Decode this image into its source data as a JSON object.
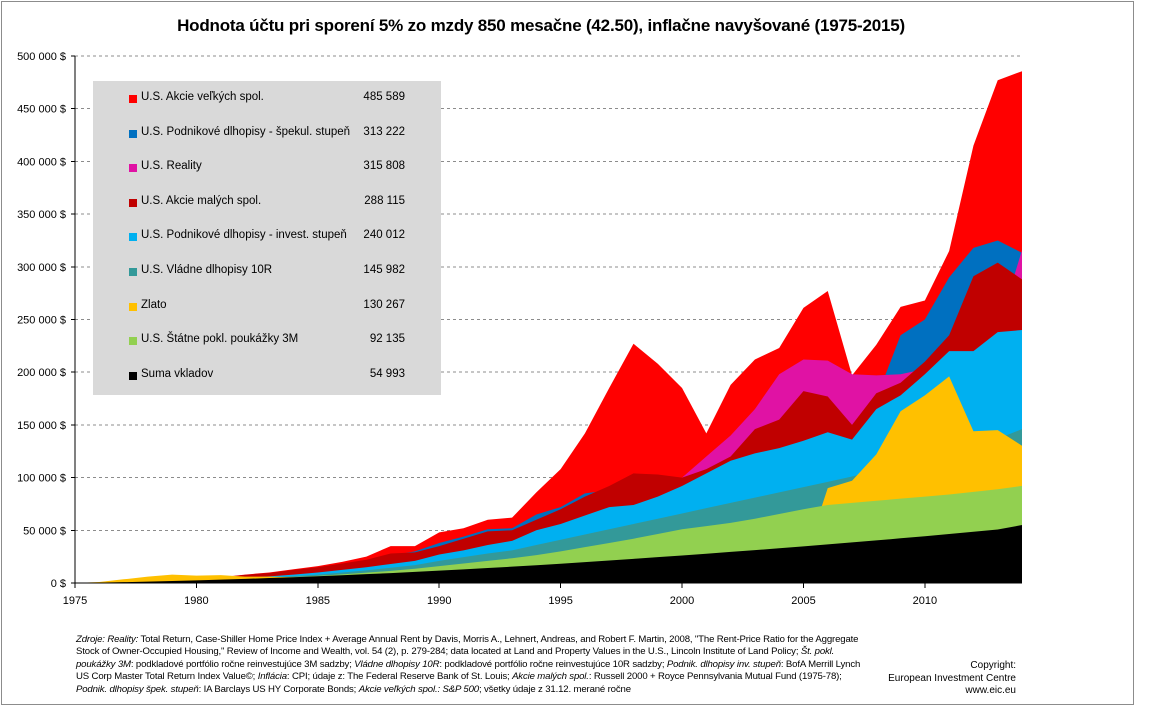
{
  "chart_data": {
    "type": "area",
    "title": "Hodnota účtu pri sporení 5% zo mzdy 850 mesačne (42.50), inflačne navyšované  (1975-2015)",
    "xlim": [
      1975,
      2014
    ],
    "ylim": [
      0,
      500000
    ],
    "x_ticks": [
      "1975",
      "1980",
      "1985",
      "1990",
      "1995",
      "2000",
      "2005",
      "2010"
    ],
    "x_tick_values": [
      1975,
      1980,
      1985,
      1990,
      1995,
      2000,
      2005,
      2010
    ],
    "y_ticks": [
      "0 $",
      "50 000 $",
      "100 000 $",
      "150 000 $",
      "200 000 $",
      "250 000 $",
      "300 000 $",
      "350 000 $",
      "400 000 $",
      "450 000 $",
      "500 000 $"
    ],
    "y_tick_values": [
      0,
      50000,
      100000,
      150000,
      200000,
      250000,
      300000,
      350000,
      400000,
      450000,
      500000
    ],
    "grid": "horizontal",
    "legend_position": "top-left",
    "x": [
      1975,
      1976,
      1977,
      1978,
      1979,
      1980,
      1981,
      1982,
      1983,
      1984,
      1985,
      1986,
      1987,
      1988,
      1989,
      1990,
      1991,
      1992,
      1993,
      1994,
      1995,
      1996,
      1997,
      1998,
      1999,
      2000,
      2001,
      2002,
      2003,
      2004,
      2005,
      2006,
      2007,
      2008,
      2009,
      2010,
      2011,
      2012,
      2013,
      2014
    ],
    "series": [
      {
        "name": "U.S. Akcie veľkých spol.",
        "legend_value": "485 589",
        "color": "#ff0000",
        "values": [
          0,
          500,
          1200,
          2000,
          3200,
          4500,
          5500,
          8000,
          10000,
          13000,
          16000,
          20000,
          25000,
          35000,
          35000,
          48000,
          52000,
          60000,
          62000,
          86000,
          108000,
          142000,
          185000,
          227000,
          208000,
          185000,
          142000,
          188000,
          212000,
          223000,
          261000,
          277000,
          197000,
          226000,
          262000,
          268000,
          315000,
          415000,
          477000,
          485589
        ]
      },
      {
        "name": "U.S. Podnikové dlhopisy  - špekul. stupeň",
        "legend_value": "313 222",
        "color": "#0070c0",
        "values": [
          0,
          400,
          1000,
          1800,
          2800,
          3800,
          4800,
          6500,
          8000,
          11000,
          14000,
          17000,
          21000,
          26000,
          30000,
          38000,
          44000,
          51000,
          52000,
          65000,
          72000,
          85000,
          88000,
          91000,
          90000,
          100000,
          103000,
          115000,
          125000,
          135000,
          148000,
          150000,
          140000,
          175000,
          235000,
          250000,
          290000,
          318000,
          325000,
          313222
        ]
      },
      {
        "name": "U.S. Reality",
        "legend_value": "315 808",
        "color": "#e012a4",
        "values": [
          0,
          350,
          900,
          1600,
          2400,
          3300,
          4300,
          5600,
          7000,
          9000,
          11500,
          14000,
          17000,
          20000,
          23000,
          29000,
          33000,
          38000,
          42000,
          52000,
          58000,
          68000,
          76000,
          80000,
          88000,
          100000,
          120000,
          140000,
          165000,
          198000,
          212000,
          211000,
          198000,
          197000,
          198000,
          203000,
          225000,
          235000,
          240000,
          315808
        ]
      },
      {
        "name": "U.S. Akcie malých spol.",
        "legend_value": "288 115",
        "color": "#c00000",
        "values": [
          0,
          450,
          1100,
          1900,
          3000,
          4300,
          5300,
          7700,
          9500,
          12500,
          15000,
          18500,
          22000,
          28000,
          29000,
          35000,
          42000,
          49000,
          50000,
          60000,
          70000,
          82000,
          92000,
          104000,
          103000,
          100000,
          108000,
          120000,
          146000,
          155000,
          182000,
          177000,
          150000,
          180000,
          190000,
          210000,
          235000,
          291000,
          304000,
          288115
        ]
      },
      {
        "name": "U.S. Podnikové dlhopisy  - invest. stupeň",
        "legend_value": "240 012",
        "color": "#00b0f0",
        "values": [
          0,
          300,
          800,
          1400,
          2100,
          2900,
          3800,
          5000,
          6300,
          8000,
          10000,
          12500,
          15000,
          18000,
          21000,
          27000,
          31000,
          36000,
          40000,
          50000,
          56000,
          64000,
          72000,
          74000,
          82000,
          92000,
          104000,
          116000,
          123000,
          128000,
          135000,
          143000,
          136000,
          165000,
          178000,
          198000,
          220000,
          220000,
          238000,
          240012
        ]
      },
      {
        "name": "U.S. Vládne dlhopisy  10R",
        "legend_value": "145 982",
        "color": "#339999",
        "values": [
          0,
          200,
          600,
          1000,
          1600,
          2200,
          3000,
          4000,
          5000,
          6500,
          8000,
          10000,
          12000,
          14500,
          17000,
          21000,
          24500,
          28000,
          31000,
          36000,
          41000,
          46000,
          51000,
          56000,
          61000,
          66000,
          71000,
          76000,
          81000,
          86000,
          91000,
          96000,
          101000,
          107000,
          113000,
          119000,
          125000,
          131000,
          137000,
          145982
        ]
      },
      {
        "name": "Zlato",
        "legend_value": "130 267",
        "color": "#ffc000",
        "values": [
          0,
          1000,
          3500,
          6000,
          8000,
          7000,
          7500,
          6000,
          6000,
          5500,
          5500,
          6000,
          7000,
          7000,
          7000,
          7500,
          8000,
          8500,
          9000,
          10000,
          10500,
          11000,
          11500,
          11500,
          12000,
          12500,
          13000,
          14000,
          16000,
          18000,
          20000,
          90000,
          97000,
          122000,
          163000,
          178000,
          196000,
          144000,
          145000,
          130267
        ]
      },
      {
        "name": "U.S. Štátne pokl. poukážky 3M",
        "legend_value": "92 135",
        "color": "#92d050",
        "values": [
          0,
          200,
          500,
          900,
          1400,
          2000,
          2800,
          3600,
          4500,
          5600,
          6800,
          8200,
          9800,
          11500,
          13500,
          16000,
          18500,
          21000,
          23500,
          26500,
          30000,
          34000,
          38000,
          42000,
          46500,
          51000,
          54000,
          57000,
          61000,
          65500,
          70000,
          74000,
          76000,
          78000,
          80000,
          82000,
          84000,
          86500,
          89000,
          92135
        ]
      },
      {
        "name": "Suma vkladov",
        "legend_value": "54 993",
        "color": "#000000",
        "values": [
          0,
          400,
          800,
          1300,
          1900,
          2500,
          3200,
          3900,
          4700,
          5500,
          6400,
          7400,
          8400,
          9400,
          10500,
          11700,
          12900,
          14200,
          15500,
          16900,
          18300,
          19800,
          21300,
          22900,
          24500,
          26100,
          27800,
          29500,
          31200,
          33000,
          34800,
          36600,
          38500,
          40400,
          42400,
          44400,
          46500,
          48600,
          50700,
          54993
        ]
      }
    ]
  },
  "sources": {
    "zdroje": "Zdroje:",
    "reality_label": "Reality:",
    "reality_text": " Total Return, Case-Shiller Home Price Index + Average Annual Rent by Davis, Morris A., Lehnert, Andreas, and Robert F. Martin, 2008, \"The Rent-Price Ratio for the Aggregate Stock of Owner-Occupied Housing,\" Review of Income and Wealth, vol. 54 (2), p. 279-284; data located at Land and Property Values in the U.S., Lincoln Institute of Land Policy; ",
    "stpokl_label": "Št. pokl. poukážky 3M",
    "stpokl_text": ": podkladové portfólio ročne reinvestujúce 3M sadzby; ",
    "vladne_label": "Vládne dlhopisy 10R",
    "vladne_text": ": podkladové portfólio ročne reinvestujúce 10R sadzby; ",
    "podnik_inv_label": "Podnik. dlhopisy inv. stupeň",
    "podnik_inv_text": ": BofA Merrill Lynch US Corp Master Total Return Index Value©; ",
    "inflacia_label": "Inflácia",
    "inflacia_text": ": CPI; údaje z: The Federal Reserve Bank of St. Louis; ",
    "male_label": "Akcie malých spol.",
    "male_text": ": Russell 2000 + Royce Pennsylvania Mutual Fund (1975-78); ",
    "podnik_spek_label": "Podnik. dlhopisy špek. stupeň",
    "podnik_spek_text": ": IA Barclays US HY Corporate Bonds; ",
    "velke_label": "Akcie veľkých spol.: S&P 500",
    "velke_text": "; všetky údaje  z 31.12. merané ročne"
  },
  "credit": {
    "line1": "Copyright:",
    "line2": "European Investment Centre",
    "line3": "www.eic.eu"
  }
}
